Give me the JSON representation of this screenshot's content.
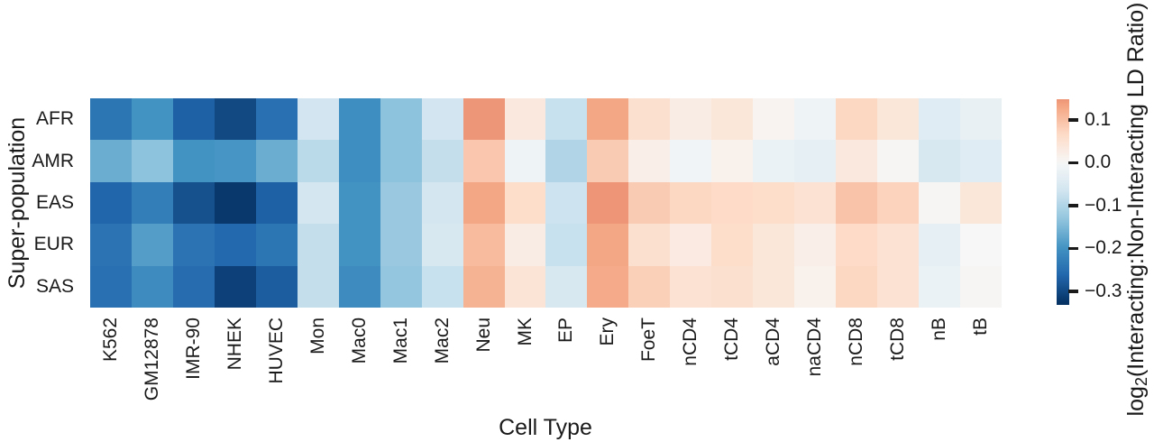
{
  "figure": {
    "background": "#ffffff",
    "colorbar_label": {
      "prefix": "log",
      "sub": "2",
      "suffix": "(Interacting:Non-Interacting LD Ratio)"
    }
  },
  "chart_data": {
    "type": "heatmap",
    "title": "",
    "xlabel": "Cell Type",
    "ylabel": "Super-population",
    "columns": [
      "K562",
      "GM12878",
      "IMR-90",
      "NHEK",
      "HUVEC",
      "Mon",
      "Mac0",
      "Mac1",
      "Mac2",
      "Neu",
      "MK",
      "EP",
      "Ery",
      "FoeT",
      "nCD4",
      "tCD4",
      "aCD4",
      "naCD4",
      "nCD8",
      "tCD8",
      "nB",
      "tB"
    ],
    "rows": [
      "AFR",
      "AMR",
      "EAS",
      "EUR",
      "SAS"
    ],
    "values": [
      [
        -0.24,
        -0.2,
        -0.27,
        -0.3,
        -0.25,
        -0.065,
        -0.205,
        -0.135,
        -0.065,
        0.145,
        0.035,
        -0.075,
        0.13,
        0.055,
        0.025,
        0.04,
        0.01,
        -0.015,
        0.07,
        0.04,
        -0.04,
        -0.025
      ],
      [
        -0.165,
        -0.135,
        -0.2,
        -0.195,
        -0.165,
        -0.09,
        -0.205,
        -0.135,
        -0.08,
        0.09,
        -0.015,
        -0.1,
        0.085,
        0.02,
        -0.01,
        0.015,
        -0.02,
        -0.03,
        0.035,
        0.005,
        -0.055,
        -0.04
      ],
      [
        -0.265,
        -0.23,
        -0.29,
        -0.32,
        -0.27,
        -0.06,
        -0.2,
        -0.125,
        -0.06,
        0.13,
        0.06,
        -0.07,
        0.147,
        0.085,
        0.07,
        0.065,
        0.06,
        0.05,
        0.095,
        0.075,
        0.005,
        0.04
      ],
      [
        -0.245,
        -0.185,
        -0.245,
        -0.26,
        -0.24,
        -0.08,
        -0.2,
        -0.125,
        -0.055,
        0.105,
        0.025,
        -0.075,
        0.13,
        0.055,
        0.03,
        0.06,
        0.04,
        0.02,
        0.065,
        0.05,
        -0.03,
        0.0
      ],
      [
        -0.25,
        -0.21,
        -0.255,
        -0.31,
        -0.275,
        -0.08,
        -0.21,
        -0.13,
        -0.075,
        0.115,
        0.045,
        -0.055,
        0.125,
        0.08,
        0.05,
        0.055,
        0.04,
        0.015,
        0.07,
        0.05,
        -0.02,
        0.005
      ]
    ],
    "colorbar": {
      "label": "log2(Interacting:Non-Interacting LD Ratio)",
      "ticks": [
        0.1,
        0.0,
        -0.1,
        -0.2,
        -0.3
      ],
      "tick_labels": [
        "0.1",
        "0.0",
        "−0.1",
        "−0.2",
        "−0.3"
      ],
      "vmin": -0.332,
      "vmax": 0.148,
      "center": 0,
      "cmap": "RdBu_r",
      "cmap_halfrange": 0.33,
      "position": "right"
    },
    "grid": false,
    "colors": {
      "cmap_stops": [
        "#053061",
        "#2166ac",
        "#4393c3",
        "#92c5de",
        "#d1e5f0",
        "#f7f7f7",
        "#fddbc7",
        "#f4a582",
        "#d6604d",
        "#b2182b",
        "#67001f"
      ],
      "tick_color": "#1a1a1a"
    }
  }
}
